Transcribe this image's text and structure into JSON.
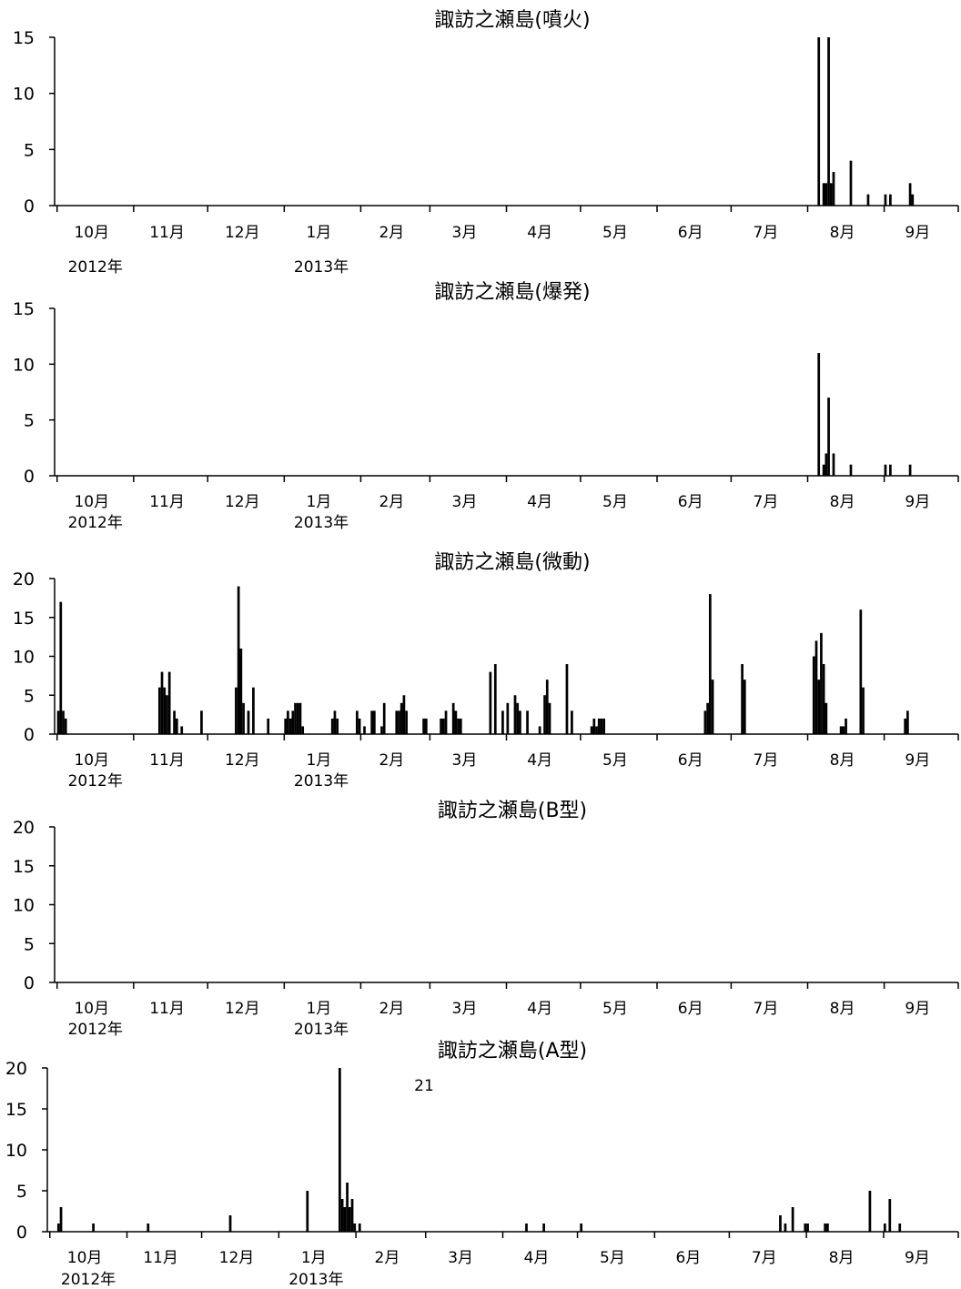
{
  "chart_data": [
    {
      "type": "bar",
      "title": "諏訪之瀬島(噴火)",
      "ylim": [
        0,
        15
      ],
      "yticks": [
        "0",
        "5",
        "10",
        "15"
      ],
      "x_tick_labels": [
        "10月",
        "11月",
        "12月",
        "1月",
        "2月",
        "3月",
        "4月",
        "5月",
        "6月",
        "7月",
        "8月",
        "9月"
      ],
      "year_labels": [
        "2012年",
        "2013年"
      ],
      "series": [
        {
          "points": [
            {
              "x": "2013-08-05",
              "y": 15
            },
            {
              "x": "2013-08-07",
              "y": 2
            },
            {
              "x": "2013-08-08",
              "y": 2
            },
            {
              "x": "2013-08-09",
              "y": 15
            },
            {
              "x": "2013-08-10",
              "y": 2
            },
            {
              "x": "2013-08-11",
              "y": 3
            },
            {
              "x": "2013-08-18",
              "y": 4
            },
            {
              "x": "2013-08-25",
              "y": 1
            },
            {
              "x": "2013-09-01",
              "y": 1
            },
            {
              "x": "2013-09-03",
              "y": 1
            },
            {
              "x": "2013-09-11",
              "y": 2
            },
            {
              "x": "2013-09-12",
              "y": 1
            }
          ]
        }
      ]
    },
    {
      "type": "bar",
      "title": "諏訪之瀬島(爆発)",
      "ylim": [
        0,
        15
      ],
      "yticks": [
        "0",
        "5",
        "10",
        "15"
      ],
      "x_tick_labels": [
        "10月",
        "11月",
        "12月",
        "1月",
        "2月",
        "3月",
        "4月",
        "5月",
        "6月",
        "7月",
        "8月",
        "9月"
      ],
      "year_labels": [
        "2012年",
        "2013年"
      ],
      "series": [
        {
          "points": [
            {
              "x": "2013-08-05",
              "y": 11
            },
            {
              "x": "2013-08-07",
              "y": 1
            },
            {
              "x": "2013-08-08",
              "y": 2
            },
            {
              "x": "2013-08-09",
              "y": 7
            },
            {
              "x": "2013-08-11",
              "y": 2
            },
            {
              "x": "2013-08-18",
              "y": 1
            },
            {
              "x": "2013-09-01",
              "y": 1
            },
            {
              "x": "2013-09-03",
              "y": 1
            },
            {
              "x": "2013-09-11",
              "y": 1
            }
          ]
        }
      ]
    },
    {
      "type": "bar",
      "title": "諏訪之瀬島(微動)",
      "ylim": [
        0,
        20
      ],
      "yticks": [
        "0",
        "5",
        "10",
        "15",
        "20"
      ],
      "x_tick_labels": [
        "10月",
        "11月",
        "12月",
        "1月",
        "2月",
        "3月",
        "4月",
        "5月",
        "6月",
        "7月",
        "8月",
        "9月"
      ],
      "year_labels": [
        "2012年",
        "2013年"
      ],
      "series": [
        {
          "points": [
            {
              "x": "2012-10-01",
              "y": 3
            },
            {
              "x": "2012-10-02",
              "y": 17
            },
            {
              "x": "2012-10-03",
              "y": 3
            },
            {
              "x": "2012-10-04",
              "y": 2
            },
            {
              "x": "2012-11-11",
              "y": 6
            },
            {
              "x": "2012-11-12",
              "y": 8
            },
            {
              "x": "2012-11-13",
              "y": 6
            },
            {
              "x": "2012-11-14",
              "y": 5
            },
            {
              "x": "2012-11-15",
              "y": 8
            },
            {
              "x": "2012-11-17",
              "y": 3
            },
            {
              "x": "2012-11-18",
              "y": 2
            },
            {
              "x": "2012-11-20",
              "y": 1
            },
            {
              "x": "2012-11-28",
              "y": 3
            },
            {
              "x": "2012-12-12",
              "y": 6
            },
            {
              "x": "2012-12-13",
              "y": 19
            },
            {
              "x": "2012-12-14",
              "y": 11
            },
            {
              "x": "2012-12-15",
              "y": 4
            },
            {
              "x": "2012-12-17",
              "y": 3
            },
            {
              "x": "2012-12-19",
              "y": 6
            },
            {
              "x": "2012-12-25",
              "y": 2
            },
            {
              "x": "2013-01-01",
              "y": 2
            },
            {
              "x": "2013-01-02",
              "y": 3
            },
            {
              "x": "2013-01-03",
              "y": 2
            },
            {
              "x": "2013-01-04",
              "y": 3
            },
            {
              "x": "2013-01-05",
              "y": 4
            },
            {
              "x": "2013-01-06",
              "y": 4
            },
            {
              "x": "2013-01-07",
              "y": 4
            },
            {
              "x": "2013-01-08",
              "y": 1
            },
            {
              "x": "2013-01-20",
              "y": 2
            },
            {
              "x": "2013-01-21",
              "y": 3
            },
            {
              "x": "2013-01-22",
              "y": 2
            },
            {
              "x": "2013-01-30",
              "y": 3
            },
            {
              "x": "2013-01-31",
              "y": 2
            },
            {
              "x": "2013-02-02",
              "y": 1
            },
            {
              "x": "2013-02-05",
              "y": 3
            },
            {
              "x": "2013-02-06",
              "y": 3
            },
            {
              "x": "2013-02-09",
              "y": 1
            },
            {
              "x": "2013-02-10",
              "y": 4
            },
            {
              "x": "2013-02-15",
              "y": 3
            },
            {
              "x": "2013-02-16",
              "y": 3
            },
            {
              "x": "2013-02-17",
              "y": 4
            },
            {
              "x": "2013-02-18",
              "y": 5
            },
            {
              "x": "2013-02-19",
              "y": 3
            },
            {
              "x": "2013-02-26",
              "y": 2
            },
            {
              "x": "2013-02-27",
              "y": 2
            },
            {
              "x": "2013-03-05",
              "y": 2
            },
            {
              "x": "2013-03-06",
              "y": 2
            },
            {
              "x": "2013-03-07",
              "y": 3
            },
            {
              "x": "2013-03-10",
              "y": 4
            },
            {
              "x": "2013-03-11",
              "y": 3
            },
            {
              "x": "2013-03-12",
              "y": 2
            },
            {
              "x": "2013-03-13",
              "y": 2
            },
            {
              "x": "2013-03-25",
              "y": 8
            },
            {
              "x": "2013-03-27",
              "y": 9
            },
            {
              "x": "2013-03-30",
              "y": 3
            },
            {
              "x": "2013-04-01",
              "y": 4
            },
            {
              "x": "2013-04-04",
              "y": 5
            },
            {
              "x": "2013-04-05",
              "y": 4
            },
            {
              "x": "2013-04-06",
              "y": 3
            },
            {
              "x": "2013-04-09",
              "y": 3
            },
            {
              "x": "2013-04-14",
              "y": 1
            },
            {
              "x": "2013-04-16",
              "y": 5
            },
            {
              "x": "2013-04-17",
              "y": 7
            },
            {
              "x": "2013-04-18",
              "y": 4
            },
            {
              "x": "2013-04-25",
              "y": 9
            },
            {
              "x": "2013-04-27",
              "y": 3
            },
            {
              "x": "2013-05-05",
              "y": 1
            },
            {
              "x": "2013-05-06",
              "y": 2
            },
            {
              "x": "2013-05-07",
              "y": 1
            },
            {
              "x": "2013-05-08",
              "y": 2
            },
            {
              "x": "2013-05-09",
              "y": 2
            },
            {
              "x": "2013-05-10",
              "y": 2
            },
            {
              "x": "2013-06-20",
              "y": 3
            },
            {
              "x": "2013-06-21",
              "y": 4
            },
            {
              "x": "2013-06-22",
              "y": 18
            },
            {
              "x": "2013-06-23",
              "y": 7
            },
            {
              "x": "2013-07-05",
              "y": 9
            },
            {
              "x": "2013-07-06",
              "y": 7
            },
            {
              "x": "2013-08-03",
              "y": 10
            },
            {
              "x": "2013-08-04",
              "y": 12
            },
            {
              "x": "2013-08-05",
              "y": 7
            },
            {
              "x": "2013-08-06",
              "y": 13
            },
            {
              "x": "2013-08-07",
              "y": 9
            },
            {
              "x": "2013-08-08",
              "y": 4
            },
            {
              "x": "2013-08-14",
              "y": 1
            },
            {
              "x": "2013-08-15",
              "y": 1
            },
            {
              "x": "2013-08-16",
              "y": 2
            },
            {
              "x": "2013-08-22",
              "y": 16
            },
            {
              "x": "2013-08-23",
              "y": 6
            },
            {
              "x": "2013-09-09",
              "y": 2
            },
            {
              "x": "2013-09-10",
              "y": 3
            }
          ]
        }
      ]
    },
    {
      "type": "bar",
      "title": "諏訪之瀬島(B型)",
      "ylim": [
        0,
        20
      ],
      "yticks": [
        "0",
        "5",
        "10",
        "15",
        "20"
      ],
      "x_tick_labels": [
        "10月",
        "11月",
        "12月",
        "1月",
        "2月",
        "3月",
        "4月",
        "5月",
        "6月",
        "7月",
        "8月",
        "9月"
      ],
      "year_labels": [
        "2012年",
        "2013年"
      ],
      "series": [
        {
          "points": []
        }
      ]
    },
    {
      "type": "bar",
      "title": "諏訪之瀬島(A型)",
      "ylim": [
        0,
        20
      ],
      "yticks": [
        "0",
        "5",
        "10",
        "15",
        "20"
      ],
      "x_tick_labels": [
        "10月",
        "11月",
        "12月",
        "1月",
        "2月",
        "3月",
        "4月",
        "5月",
        "6月",
        "7月",
        "8月",
        "9月"
      ],
      "year_labels": [
        "2012年",
        "2013年"
      ],
      "annotation": "21",
      "series": [
        {
          "points": [
            {
              "x": "2012-10-04",
              "y": 1
            },
            {
              "x": "2012-10-05",
              "y": 3
            },
            {
              "x": "2012-10-18",
              "y": 1
            },
            {
              "x": "2012-11-09",
              "y": 1
            },
            {
              "x": "2012-12-12",
              "y": 2
            },
            {
              "x": "2013-01-12",
              "y": 5
            },
            {
              "x": "2013-01-25",
              "y": 21
            },
            {
              "x": "2013-01-26",
              "y": 4
            },
            {
              "x": "2013-01-27",
              "y": 3
            },
            {
              "x": "2013-01-28",
              "y": 6
            },
            {
              "x": "2013-01-29",
              "y": 3
            },
            {
              "x": "2013-01-30",
              "y": 4
            },
            {
              "x": "2013-01-31",
              "y": 1
            },
            {
              "x": "2013-02-02",
              "y": 1
            },
            {
              "x": "2013-04-10",
              "y": 1
            },
            {
              "x": "2013-04-17",
              "y": 1
            },
            {
              "x": "2013-05-02",
              "y": 1
            },
            {
              "x": "2013-07-21",
              "y": 2
            },
            {
              "x": "2013-07-23",
              "y": 1
            },
            {
              "x": "2013-07-26",
              "y": 3
            },
            {
              "x": "2013-07-31",
              "y": 1
            },
            {
              "x": "2013-08-01",
              "y": 1
            },
            {
              "x": "2013-08-08",
              "y": 1
            },
            {
              "x": "2013-08-09",
              "y": 1
            },
            {
              "x": "2013-08-26",
              "y": 5
            },
            {
              "x": "2013-09-01",
              "y": 1
            },
            {
              "x": "2013-09-03",
              "y": 4
            },
            {
              "x": "2013-09-07",
              "y": 1
            }
          ]
        }
      ]
    }
  ]
}
